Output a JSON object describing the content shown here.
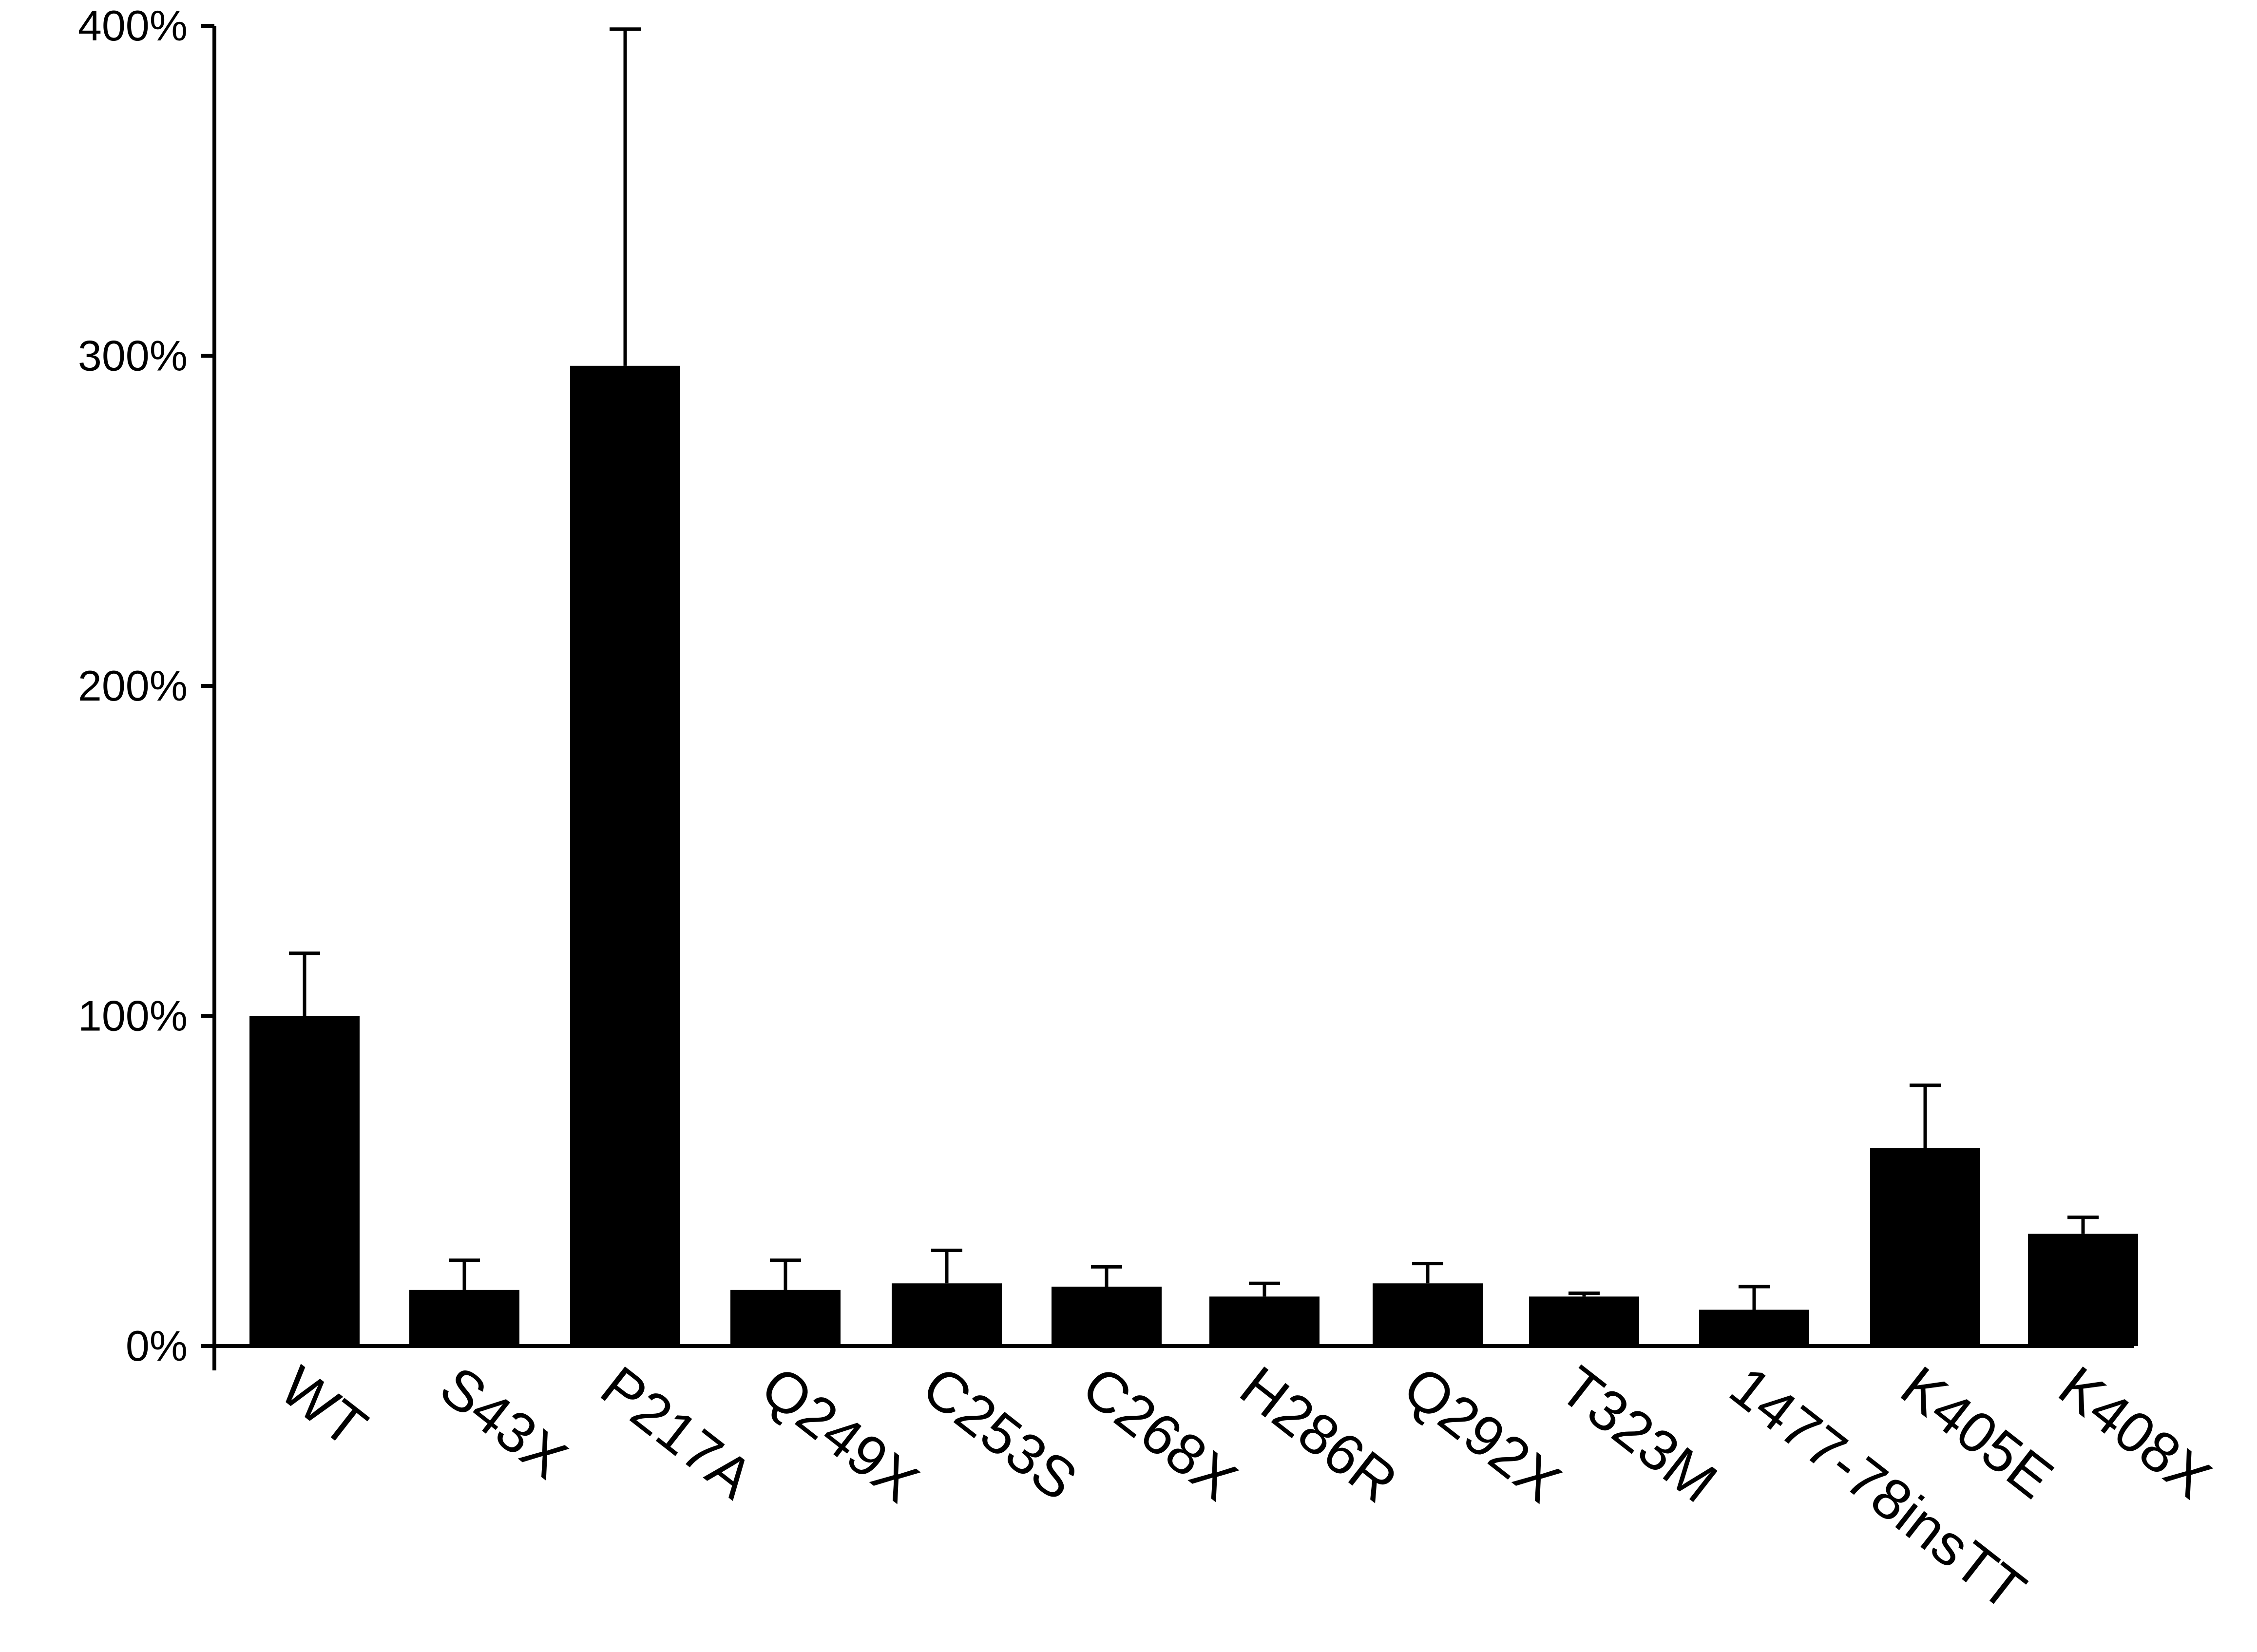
{
  "chart_data": {
    "type": "bar",
    "title": "",
    "xlabel": "",
    "ylabel": "",
    "categories": [
      "WT",
      "S43X",
      "P217A",
      "Q249X",
      "C253S",
      "C268X",
      "H286R",
      "Q292X",
      "T323M",
      "1477-78insTT",
      "K405E",
      "K408X"
    ],
    "values": [
      100,
      17,
      297,
      17,
      19,
      18,
      15,
      19,
      15,
      11,
      60,
      34
    ],
    "error_upper": [
      119,
      26,
      399,
      26,
      29,
      24,
      19,
      25,
      16,
      18,
      79,
      39
    ],
    "ylim": [
      0,
      400
    ],
    "yticks": [
      {
        "value": 0,
        "label": "0%"
      },
      {
        "value": 100,
        "label": "100%"
      },
      {
        "value": 200,
        "label": "200%"
      },
      {
        "value": 300,
        "label": "300%"
      },
      {
        "value": 400,
        "label": "400%"
      }
    ],
    "grid": false,
    "legend": "none",
    "colors": {
      "bar": "#000000",
      "axis": "#000000",
      "background": "#ffffff"
    }
  }
}
